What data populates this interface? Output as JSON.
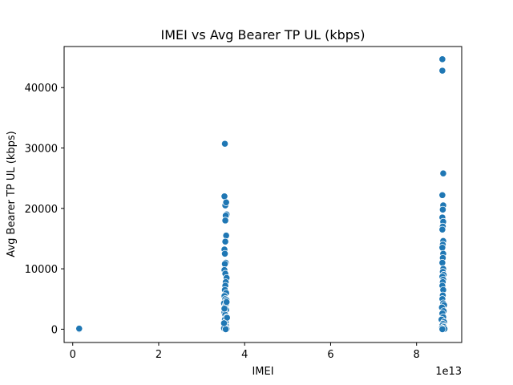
{
  "chart_data": {
    "type": "scatter",
    "title": "IMEI vs Avg Bearer TP UL (kbps)",
    "xlabel": "IMEI",
    "ylabel": "Avg Bearer TP UL (kbps)",
    "x_offset_label": "1e13",
    "xlim": [
      -0.2,
      9.05
    ],
    "ylim": [
      -2200,
      46800
    ],
    "x_ticks": [
      0,
      2,
      4,
      6,
      8
    ],
    "x_tick_labels": [
      "0",
      "2",
      "4",
      "6",
      "8"
    ],
    "y_ticks": [
      0,
      10000,
      20000,
      30000,
      40000
    ],
    "y_tick_labels": [
      "0",
      "10000",
      "20000",
      "30000",
      "40000"
    ],
    "grid": false,
    "point_color": "#1f77b4",
    "series": [
      {
        "points": [
          [
            0.15,
            0
          ],
          [
            0.15,
            100
          ],
          [
            3.53,
            22000
          ],
          [
            3.55,
            20500
          ],
          [
            3.57,
            21000
          ],
          [
            3.58,
            19000
          ],
          [
            3.56,
            18800
          ],
          [
            3.55,
            18000
          ],
          [
            3.57,
            15500
          ],
          [
            3.55,
            14500
          ],
          [
            3.53,
            13200
          ],
          [
            3.54,
            12500
          ],
          [
            3.56,
            11000
          ],
          [
            3.54,
            10800
          ],
          [
            3.53,
            9800
          ],
          [
            3.55,
            9200
          ],
          [
            3.58,
            8500
          ],
          [
            3.56,
            7800
          ],
          [
            3.55,
            7200
          ],
          [
            3.54,
            6500
          ],
          [
            3.57,
            6000
          ],
          [
            3.53,
            5500
          ],
          [
            3.55,
            5000
          ],
          [
            3.58,
            4800
          ],
          [
            3.52,
            4300
          ],
          [
            3.56,
            4000
          ],
          [
            3.54,
            3600
          ],
          [
            3.57,
            3200
          ],
          [
            3.53,
            2800
          ],
          [
            3.55,
            2400
          ],
          [
            3.58,
            2000
          ],
          [
            3.54,
            1600
          ],
          [
            3.56,
            1200
          ],
          [
            3.53,
            800
          ],
          [
            3.57,
            500
          ],
          [
            3.55,
            300
          ],
          [
            3.52,
            150
          ],
          [
            3.58,
            50
          ],
          [
            3.56,
            0
          ],
          [
            3.54,
            30700
          ],
          [
            3.58,
            4500
          ],
          [
            3.53,
            3400
          ],
          [
            3.59,
            1900
          ],
          [
            3.52,
            1000
          ],
          [
            8.6,
            44700
          ],
          [
            8.6,
            42800
          ],
          [
            8.62,
            25800
          ],
          [
            8.6,
            22200
          ],
          [
            8.62,
            20500
          ],
          [
            8.61,
            19800
          ],
          [
            8.6,
            18500
          ],
          [
            8.62,
            17800
          ],
          [
            8.61,
            17000
          ],
          [
            8.6,
            16500
          ],
          [
            8.62,
            14600
          ],
          [
            8.61,
            14000
          ],
          [
            8.6,
            13500
          ],
          [
            8.62,
            12500
          ],
          [
            8.61,
            11800
          ],
          [
            8.6,
            11000
          ],
          [
            8.62,
            10000
          ],
          [
            8.61,
            9500
          ],
          [
            8.63,
            9000
          ],
          [
            8.6,
            8700
          ],
          [
            8.62,
            8200
          ],
          [
            8.61,
            7800
          ],
          [
            8.6,
            7200
          ],
          [
            8.62,
            6500
          ],
          [
            8.61,
            5600
          ],
          [
            8.6,
            5000
          ],
          [
            8.62,
            4300
          ],
          [
            8.64,
            4000
          ],
          [
            8.59,
            3600
          ],
          [
            8.63,
            3000
          ],
          [
            8.6,
            2600
          ],
          [
            8.62,
            2000
          ],
          [
            8.58,
            1600
          ],
          [
            8.64,
            1200
          ],
          [
            8.61,
            900
          ],
          [
            8.6,
            600
          ],
          [
            8.63,
            400
          ],
          [
            8.59,
            200
          ],
          [
            8.62,
            100
          ],
          [
            8.65,
            50
          ],
          [
            8.6,
            0
          ]
        ]
      }
    ]
  }
}
